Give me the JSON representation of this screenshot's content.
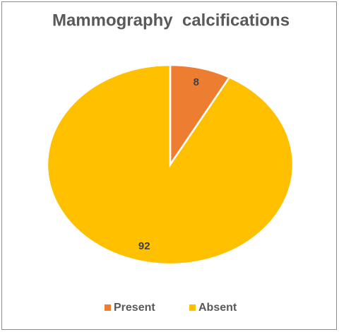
{
  "chart_data": {
    "type": "pie",
    "title": "Mammography  calcifications",
    "categories": [
      "Present",
      "Absent"
    ],
    "values": [
      8,
      92
    ],
    "colors": [
      "#ED7D31",
      "#FFC000"
    ]
  }
}
